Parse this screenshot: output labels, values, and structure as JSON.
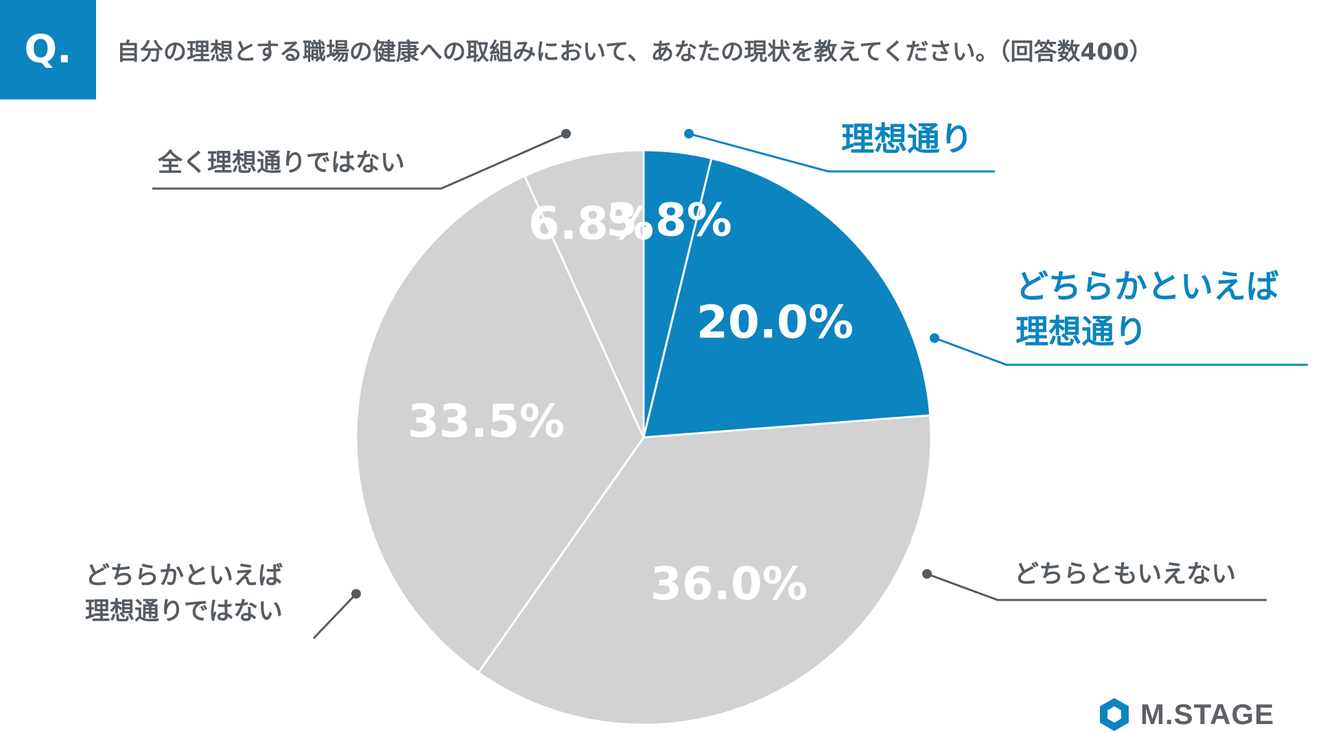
{
  "badge": "Q.",
  "question": "自分の理想とする職場の健康への取組みにおいて、あなたの現状を教えてください。（回答数400）",
  "colors": {
    "accent": "#0b84c0",
    "slice_gray": "#d3d2d3",
    "text_gray": "#555b62",
    "line_gray": "#555b62"
  },
  "chart_data": {
    "type": "pie",
    "title": "自分の理想とする職場の健康への取組みにおいて、あなたの現状を教えてください。（回答数400）",
    "slices": [
      {
        "label": "理想通り",
        "label_lines": [
          "理想通り"
        ],
        "value": 3.8,
        "display": "3.8%",
        "highlight": true
      },
      {
        "label": "どちらかといえば理想通り",
        "label_lines": [
          "どちらかといえば",
          "理想通り"
        ],
        "value": 20.0,
        "display": "20.0%",
        "highlight": true
      },
      {
        "label": "どちらともいえない",
        "label_lines": [
          "どちらともいえない"
        ],
        "value": 36.0,
        "display": "36.0%",
        "highlight": false
      },
      {
        "label": "どちらかといえば理想通りではない",
        "label_lines": [
          "どちらかといえば",
          "理想通りではない"
        ],
        "value": 33.5,
        "display": "33.5%",
        "highlight": false
      },
      {
        "label": "全く理想通りではない",
        "label_lines": [
          "全く理想通りではない"
        ],
        "value": 6.8,
        "display": "6.8%",
        "highlight": false
      }
    ]
  },
  "logo": {
    "text": "M.STAGE",
    "icon": "hexagon-logo-icon"
  }
}
